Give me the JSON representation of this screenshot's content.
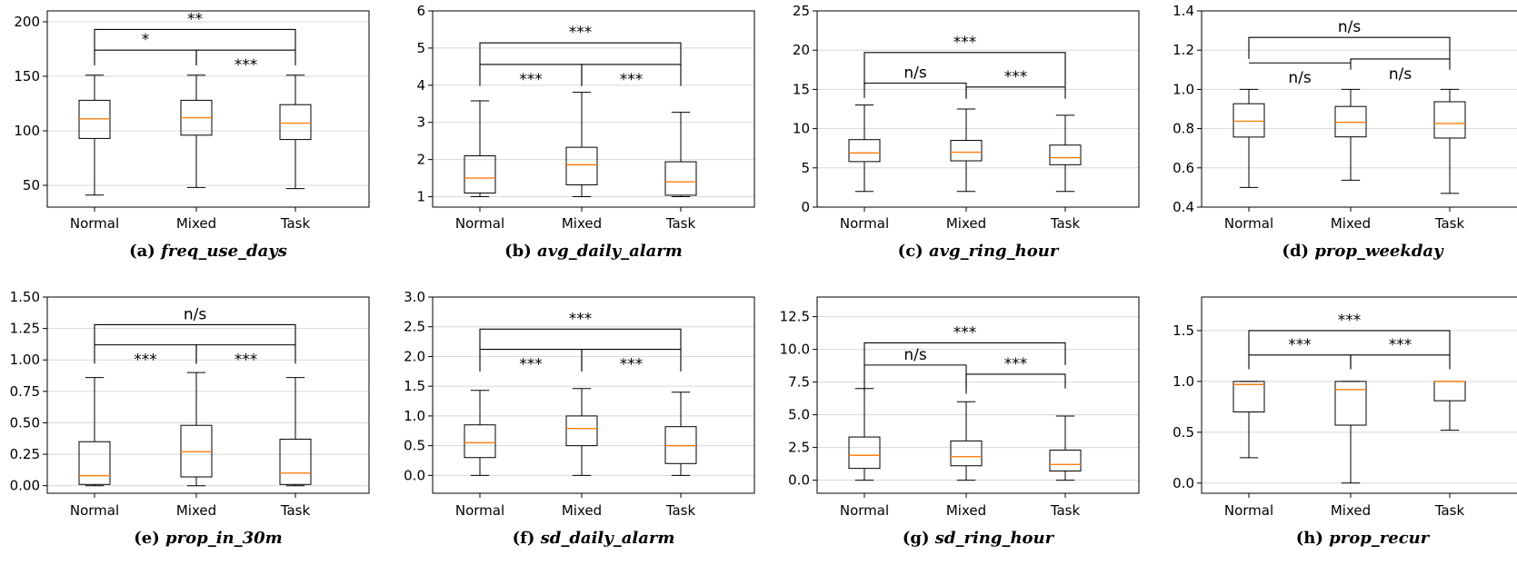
{
  "figure": {
    "categories": [
      "Normal",
      "Mixed",
      "Task"
    ]
  },
  "chart_data": [
    {
      "type": "box",
      "caption_letter": "(a)",
      "caption_name": "freq_use_days",
      "categories": [
        "Normal",
        "Mixed",
        "Task"
      ],
      "ylim": [
        30,
        210
      ],
      "yticks": [
        50,
        100,
        150,
        200
      ],
      "ytick_labels": [
        "50",
        "100",
        "150",
        "200"
      ],
      "grid": true,
      "boxes": [
        {
          "category": "Normal",
          "whisker_low": 41,
          "q1": 93,
          "median": 111,
          "q3": 128,
          "whisker_high": 151
        },
        {
          "category": "Mixed",
          "whisker_low": 48,
          "q1": 96,
          "median": 112,
          "q3": 128,
          "whisker_high": 151
        },
        {
          "category": "Task",
          "whisker_low": 47,
          "q1": 92,
          "median": 107,
          "q3": 124,
          "whisker_high": 151
        }
      ],
      "significance": [
        {
          "from": 0,
          "to": 2,
          "label": "**",
          "bar": 193,
          "drop": 174,
          "text_offset": 6
        },
        {
          "from": 0,
          "to": 1,
          "label": "*",
          "bar": 174,
          "drop": 160,
          "text_offset": 6
        },
        {
          "from": 1,
          "to": 2,
          "label": "***",
          "bar": 174,
          "drop": 160,
          "text_offset": -8
        }
      ]
    },
    {
      "type": "box",
      "caption_letter": "(b)",
      "caption_name": "avg_daily_alarm",
      "categories": [
        "Normal",
        "Mixed",
        "Task"
      ],
      "ylim": [
        0.72,
        6
      ],
      "yticks": [
        1,
        2,
        3,
        4,
        5,
        6
      ],
      "ytick_labels": [
        "1",
        "2",
        "3",
        "4",
        "5",
        "6"
      ],
      "grid": true,
      "boxes": [
        {
          "category": "Normal",
          "whisker_low": 1.0,
          "q1": 1.1,
          "median": 1.5,
          "q3": 2.1,
          "whisker_high": 3.58
        },
        {
          "category": "Mixed",
          "whisker_low": 1.0,
          "q1": 1.32,
          "median": 1.86,
          "q3": 2.33,
          "whisker_high": 3.81
        },
        {
          "category": "Task",
          "whisker_low": 1.0,
          "q1": 1.04,
          "median": 1.4,
          "q3": 1.94,
          "whisker_high": 3.27
        }
      ],
      "significance": [
        {
          "from": 0,
          "to": 2,
          "label": "***",
          "bar": 5.14,
          "drop": 4.56,
          "text_offset": 6
        },
        {
          "from": 0,
          "to": 1,
          "label": "***",
          "bar": 4.56,
          "drop": 3.98,
          "text_offset": -8
        },
        {
          "from": 1,
          "to": 2,
          "label": "***",
          "bar": 4.56,
          "drop": 3.98,
          "text_offset": -8
        }
      ]
    },
    {
      "type": "box",
      "caption_letter": "(c)",
      "caption_name": "avg_ring_hour",
      "categories": [
        "Normal",
        "Mixed",
        "Task"
      ],
      "ylim": [
        0,
        25
      ],
      "yticks": [
        0,
        5,
        10,
        15,
        20,
        25
      ],
      "ytick_labels": [
        "0",
        "5",
        "10",
        "15",
        "20",
        "25"
      ],
      "grid": true,
      "boxes": [
        {
          "category": "Normal",
          "whisker_low": 2.0,
          "q1": 5.8,
          "median": 6.9,
          "q3": 8.6,
          "whisker_high": 13.0
        },
        {
          "category": "Mixed",
          "whisker_low": 2.0,
          "q1": 5.9,
          "median": 7.0,
          "q3": 8.5,
          "whisker_high": 12.5
        },
        {
          "category": "Task",
          "whisker_low": 2.0,
          "q1": 5.4,
          "median": 6.3,
          "q3": 7.9,
          "whisker_high": 11.7
        }
      ],
      "significance": [
        {
          "from": 0,
          "to": 2,
          "label": "***",
          "bar": 19.7,
          "drop": 15.4,
          "text_offset": 6
        },
        {
          "from": 0,
          "to": 1,
          "label": "n/s",
          "bar": 15.8,
          "drop": 13.9,
          "text_offset": 6
        },
        {
          "from": 1,
          "to": 2,
          "label": "***",
          "bar": 15.3,
          "drop": 13.8,
          "text_offset": 6
        }
      ]
    },
    {
      "type": "box",
      "caption_letter": "(d)",
      "caption_name": "prop_weekday",
      "categories": [
        "Normal",
        "Mixed",
        "Task"
      ],
      "ylim": [
        0.4,
        1.4
      ],
      "yticks": [
        0.4,
        0.6,
        0.8,
        1.0,
        1.2,
        1.4
      ],
      "ytick_labels": [
        "0.4",
        "0.6",
        "0.8",
        "1.0",
        "1.2",
        "1.4"
      ],
      "grid": true,
      "boxes": [
        {
          "category": "Normal",
          "whisker_low": 0.5,
          "q1": 0.757,
          "median": 0.838,
          "q3": 0.927,
          "whisker_high": 1.0
        },
        {
          "category": "Mixed",
          "whisker_low": 0.537,
          "q1": 0.758,
          "median": 0.832,
          "q3": 0.913,
          "whisker_high": 1.0
        },
        {
          "category": "Task",
          "whisker_low": 0.47,
          "q1": 0.752,
          "median": 0.826,
          "q3": 0.937,
          "whisker_high": 1.0
        }
      ],
      "significance": [
        {
          "from": 0,
          "to": 2,
          "label": "n/s",
          "bar": 1.265,
          "drop": 1.155,
          "text_offset": 6
        },
        {
          "from": 0,
          "to": 1,
          "label": "n/s",
          "bar": 1.135,
          "drop": 1.135,
          "text_offset": -8
        },
        {
          "from": 1,
          "to": 2,
          "label": "n/s",
          "bar": 1.155,
          "drop": 1.1,
          "text_offset": -8
        }
      ]
    },
    {
      "type": "box",
      "caption_letter": "(e)",
      "caption_name": "prop_in_30m",
      "categories": [
        "Normal",
        "Mixed",
        "Task"
      ],
      "ylim": [
        -0.06,
        1.5
      ],
      "yticks": [
        0.0,
        0.25,
        0.5,
        0.75,
        1.0,
        1.25,
        1.5
      ],
      "ytick_labels": [
        "0.00",
        "0.25",
        "0.50",
        "0.75",
        "1.00",
        "1.25",
        "1.50"
      ],
      "grid": true,
      "boxes": [
        {
          "category": "Normal",
          "whisker_low": 0.0,
          "q1": 0.01,
          "median": 0.08,
          "q3": 0.35,
          "whisker_high": 0.86
        },
        {
          "category": "Mixed",
          "whisker_low": 0.0,
          "q1": 0.07,
          "median": 0.27,
          "q3": 0.48,
          "whisker_high": 0.9
        },
        {
          "category": "Task",
          "whisker_low": 0.0,
          "q1": 0.01,
          "median": 0.1,
          "q3": 0.37,
          "whisker_high": 0.86
        }
      ],
      "significance": [
        {
          "from": 0,
          "to": 2,
          "label": "n/s",
          "bar": 1.28,
          "drop": 1.12,
          "text_offset": 6
        },
        {
          "from": 0,
          "to": 1,
          "label": "***",
          "bar": 1.12,
          "drop": 0.97,
          "text_offset": -8
        },
        {
          "from": 1,
          "to": 2,
          "label": "***",
          "bar": 1.12,
          "drop": 0.97,
          "text_offset": -8
        }
      ]
    },
    {
      "type": "box",
      "caption_letter": "(f)",
      "caption_name": "sd_daily_alarm",
      "categories": [
        "Normal",
        "Mixed",
        "Task"
      ],
      "ylim": [
        -0.3,
        3.0
      ],
      "yticks": [
        0.0,
        0.5,
        1.0,
        1.5,
        2.0,
        2.5,
        3.0
      ],
      "ytick_labels": [
        "0.0",
        "0.5",
        "1.0",
        "1.5",
        "2.0",
        "2.5",
        "3.0"
      ],
      "grid": true,
      "boxes": [
        {
          "category": "Normal",
          "whisker_low": 0.0,
          "q1": 0.3,
          "median": 0.55,
          "q3": 0.85,
          "whisker_high": 1.43
        },
        {
          "category": "Mixed",
          "whisker_low": 0.0,
          "q1": 0.5,
          "median": 0.79,
          "q3": 1.0,
          "whisker_high": 1.46
        },
        {
          "category": "Task",
          "whisker_low": 0.0,
          "q1": 0.2,
          "median": 0.5,
          "q3": 0.82,
          "whisker_high": 1.4
        }
      ],
      "significance": [
        {
          "from": 0,
          "to": 2,
          "label": "***",
          "bar": 2.46,
          "drop": 2.12,
          "text_offset": 6
        },
        {
          "from": 0,
          "to": 1,
          "label": "***",
          "bar": 2.12,
          "drop": 1.75,
          "text_offset": -8
        },
        {
          "from": 1,
          "to": 2,
          "label": "***",
          "bar": 2.12,
          "drop": 1.75,
          "text_offset": -8
        }
      ]
    },
    {
      "type": "box",
      "caption_letter": "(g)",
      "caption_name": "sd_ring_hour",
      "categories": [
        "Normal",
        "Mixed",
        "Task"
      ],
      "ylim": [
        -1.0,
        14.0
      ],
      "yticks": [
        0.0,
        2.5,
        5.0,
        7.5,
        10.0,
        12.5
      ],
      "ytick_labels": [
        "0.0",
        "2.5",
        "5.0",
        "7.5",
        "10.0",
        "12.5"
      ],
      "grid": true,
      "boxes": [
        {
          "category": "Normal",
          "whisker_low": 0.0,
          "q1": 0.9,
          "median": 1.9,
          "q3": 3.3,
          "whisker_high": 7.0
        },
        {
          "category": "Mixed",
          "whisker_low": 0.0,
          "q1": 1.1,
          "median": 1.8,
          "q3": 3.0,
          "whisker_high": 6.0
        },
        {
          "category": "Task",
          "whisker_low": 0.0,
          "q1": 0.7,
          "median": 1.2,
          "q3": 2.3,
          "whisker_high": 4.9
        }
      ],
      "significance": [
        {
          "from": 0,
          "to": 2,
          "label": "***",
          "bar": 10.5,
          "drop": 8.8,
          "text_offset": 6
        },
        {
          "from": 0,
          "to": 1,
          "label": "n/s",
          "bar": 8.8,
          "drop": 6.6,
          "text_offset": 6
        },
        {
          "from": 1,
          "to": 2,
          "label": "***",
          "bar": 8.1,
          "drop": 7.0,
          "text_offset": 6
        }
      ]
    },
    {
      "type": "box",
      "caption_letter": "(h)",
      "caption_name": "prop_recur",
      "categories": [
        "Normal",
        "Mixed",
        "Task"
      ],
      "ylim": [
        -0.1,
        1.83
      ],
      "yticks": [
        0.0,
        0.5,
        1.0,
        1.5
      ],
      "ytick_labels": [
        "0.0",
        "0.5",
        "1.0",
        "1.5"
      ],
      "grid": true,
      "boxes": [
        {
          "category": "Normal",
          "whisker_low": 0.25,
          "q1": 0.7,
          "median": 0.97,
          "q3": 1.0,
          "whisker_high": 1.0
        },
        {
          "category": "Mixed",
          "whisker_low": 0.0,
          "q1": 0.57,
          "median": 0.92,
          "q3": 1.0,
          "whisker_high": 1.0
        },
        {
          "category": "Task",
          "whisker_low": 0.52,
          "q1": 0.81,
          "median": 1.0,
          "q3": 1.0,
          "whisker_high": 1.0
        }
      ],
      "significance": [
        {
          "from": 0,
          "to": 2,
          "label": "***",
          "bar": 1.5,
          "drop": 1.26,
          "text_offset": 6
        },
        {
          "from": 0,
          "to": 1,
          "label": "***",
          "bar": 1.26,
          "drop": 1.12,
          "text_offset": 6
        },
        {
          "from": 1,
          "to": 2,
          "label": "***",
          "bar": 1.26,
          "drop": 1.12,
          "text_offset": 6
        }
      ]
    }
  ]
}
